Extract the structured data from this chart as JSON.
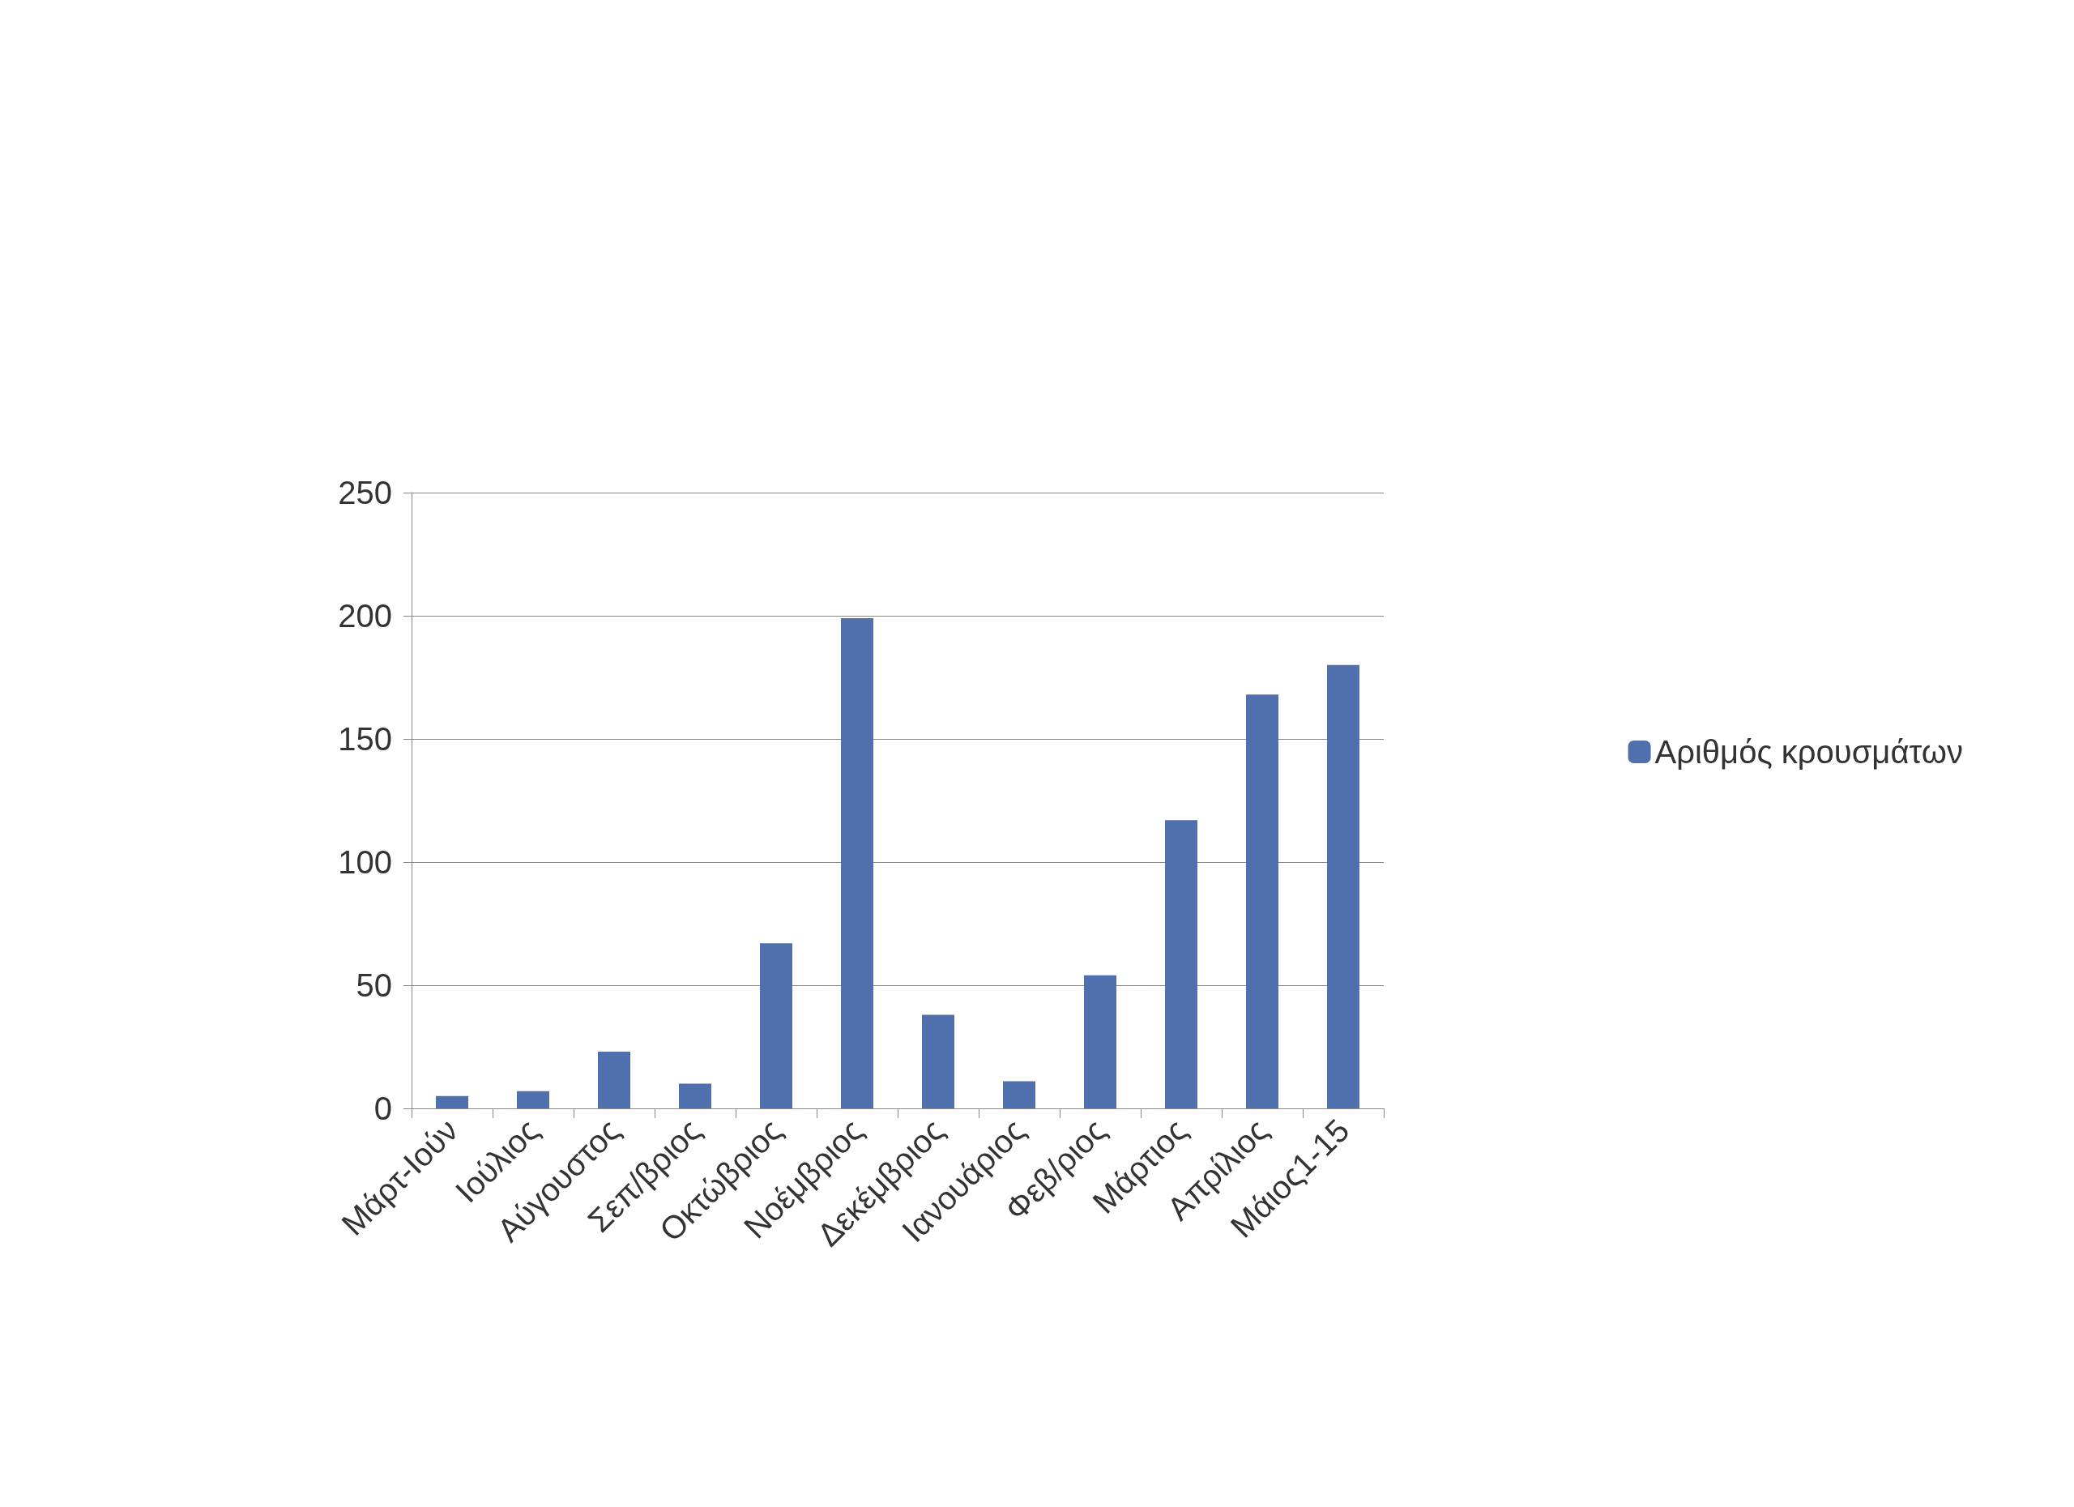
{
  "chart_data": {
    "type": "bar",
    "categories": [
      "Μάρτ-Ιούν",
      "Ιούλιος",
      "Αύγουστος",
      "Σεπ/βριος",
      "Οκτώβριος",
      "Νοέμβριος",
      "Δεκέμβριος",
      "Ιανουάριος",
      "Φεβ/ριος",
      "Μάρτιος",
      "Απρίλιος",
      "Μάιος1-15"
    ],
    "series": [
      {
        "name": "Αριθμός κρουσμάτων",
        "color": "#4f6fad",
        "values": [
          5,
          7,
          23,
          10,
          67,
          199,
          38,
          11,
          54,
          117,
          168,
          180
        ]
      }
    ],
    "ylim": [
      0,
      250
    ],
    "yticks": [
      0,
      50,
      100,
      150,
      200,
      250
    ],
    "grid": "y",
    "legend": "right"
  }
}
